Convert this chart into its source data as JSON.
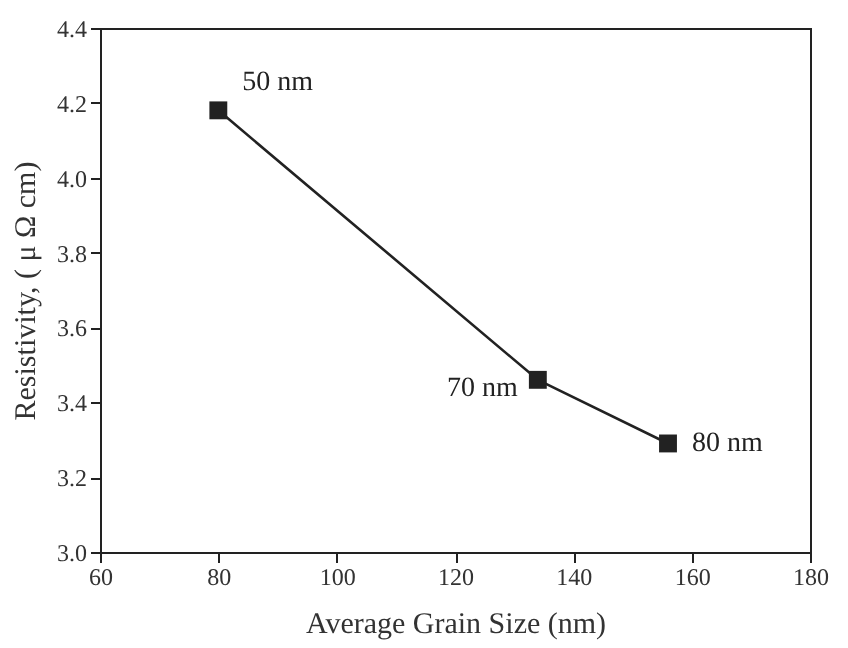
{
  "chart_data": {
    "type": "line",
    "xlabel": "Average Grain Size (nm)",
    "ylabel": "Resistivity, ( μ Ω cm)",
    "x": [
      80,
      134,
      156
    ],
    "series": [
      {
        "color": "#222222",
        "values": [
          4.18,
          3.46,
          3.29
        ]
      }
    ],
    "marker": "square",
    "line_style": "solid",
    "grid": false,
    "xlim": [
      60,
      180
    ],
    "xticks": [
      60,
      80,
      100,
      120,
      140,
      160,
      180
    ],
    "ylim": [
      3.0,
      4.4
    ],
    "yticks": [
      {
        "value": 3,
        "label": "3.0"
      },
      3.2,
      3.4,
      3.6,
      3.8,
      {
        "value": 4,
        "label": "4.0"
      },
      4.2,
      4.4
    ],
    "annotations": [
      {
        "text": "50 nm",
        "x": 80,
        "y": 4.18
      },
      {
        "text": "70 nm",
        "x": 134,
        "y": 3.46
      },
      {
        "text": "80 nm",
        "x": 156,
        "y": 3.29
      }
    ]
  }
}
